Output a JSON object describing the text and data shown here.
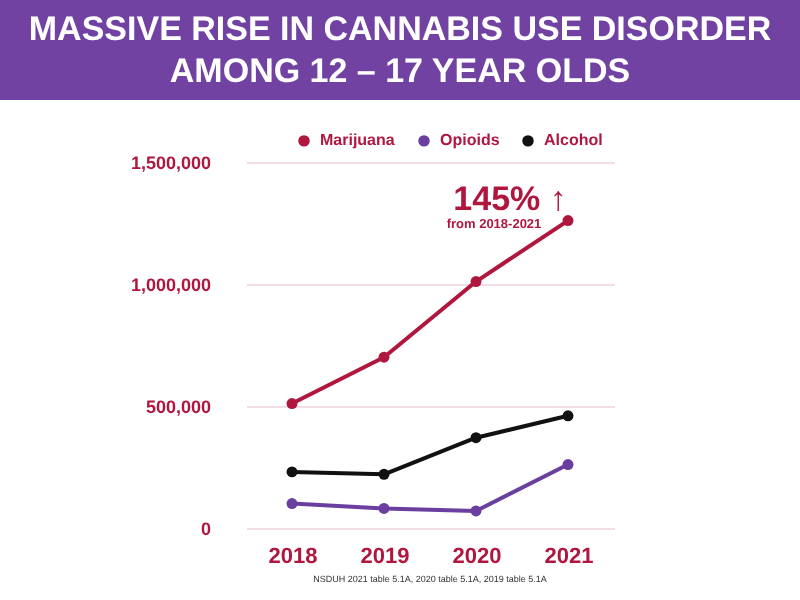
{
  "chart_data": {
    "type": "line",
    "title": "MASSIVE RISE IN CANNABIS USE DISORDER AMONG 12 – 17 YEAR OLDS",
    "categories": [
      "2018",
      "2019",
      "2020",
      "2021"
    ],
    "series": [
      {
        "name": "Marijuana",
        "color": "#b0173f",
        "values": [
          510000,
          700000,
          1010000,
          1260000
        ]
      },
      {
        "name": "Opioids",
        "color": "#6b3fa0",
        "values": [
          100000,
          80000,
          70000,
          260000
        ]
      },
      {
        "name": "Alcohol",
        "color": "#111111",
        "values": [
          230000,
          220000,
          370000,
          460000
        ]
      }
    ],
    "ylim": [
      0,
      1500000
    ],
    "yticks": [
      {
        "value": 0,
        "label": "0"
      },
      {
        "value": 500000,
        "label": "500,000"
      },
      {
        "value": 1000000,
        "label": "1,000,000"
      },
      {
        "value": 1500000,
        "label": "1,500,000"
      }
    ],
    "grid": "y",
    "legend": "top",
    "marker": "circle",
    "line_style": "solid",
    "annotations": [
      "145% ↑",
      "from 2018-2021",
      "NSDUH 2021 table 5.1A, 2020 table 5.1A, 2019 table 5.1A"
    ]
  }
}
